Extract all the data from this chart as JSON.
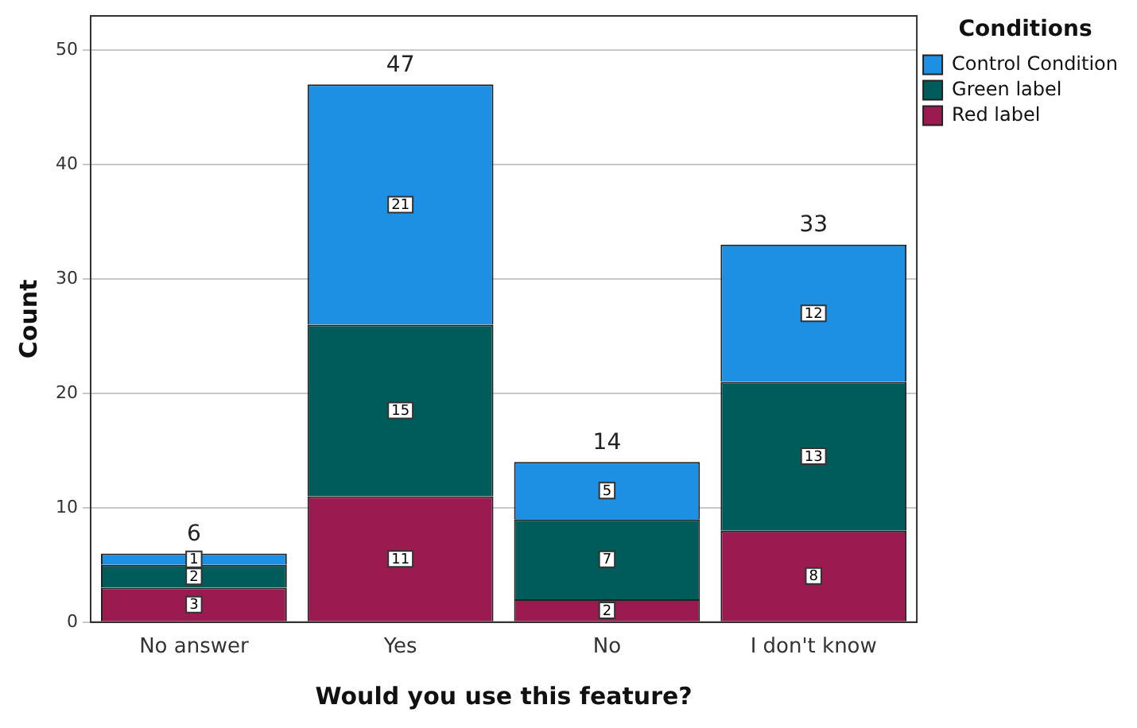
{
  "chart_data": {
    "type": "bar",
    "stacked": true,
    "xlabel": "Would you use this feature?",
    "ylabel": "Count",
    "legend_title": "Conditions",
    "legend": "top right",
    "categories": [
      "No answer",
      "Yes",
      "No",
      "I don't know"
    ],
    "series": [
      {
        "name": "Red label",
        "color": "#9b1b50",
        "values": [
          3,
          11,
          2,
          8
        ]
      },
      {
        "name": "Green label",
        "color": "#005c5a",
        "values": [
          2,
          15,
          7,
          13
        ]
      },
      {
        "name": "Control Condition",
        "color": "#1e90e4",
        "values": [
          1,
          21,
          5,
          12
        ]
      }
    ],
    "ylim": [
      0,
      53
    ],
    "yticks": [
      0,
      10,
      20,
      30,
      40,
      50
    ],
    "grid": "y",
    "data_labels": true,
    "totals": [
      "6",
      "47",
      "14",
      "33"
    ]
  }
}
